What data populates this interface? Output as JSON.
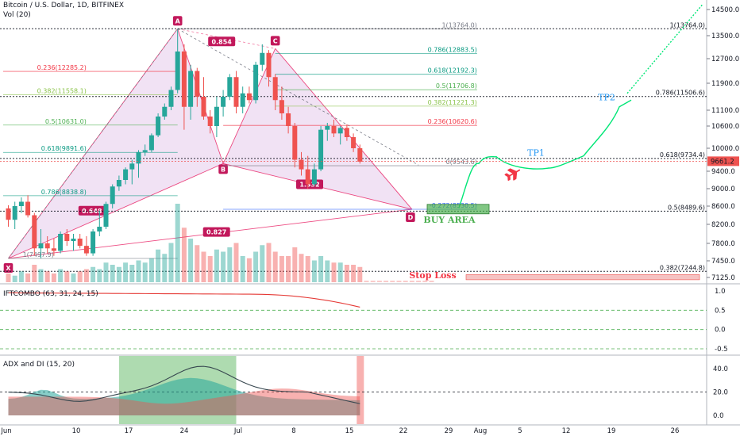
{
  "header": {
    "symbol": "Bitcoin / U.S. Dollar, 1D, BITFINEX",
    "volume_label": "Vol (20)"
  },
  "price_axis": {
    "ticks": [
      "14500.0",
      "13500.0",
      "12700.0",
      "11900.0",
      "11100.0",
      "10600.0",
      "10000.0",
      "9400.0",
      "9000.0",
      "8600.0",
      "8200.0",
      "7800.0",
      "7450.0",
      "7125.0"
    ],
    "last_price": "9661.2"
  },
  "time_axis": {
    "ticks": [
      "Jun",
      "10",
      "17",
      "24",
      "Jul",
      "8",
      "15",
      "22",
      "29",
      "Aug",
      "5",
      "12",
      "19",
      "26"
    ]
  },
  "pattern": {
    "points": {
      "X": "X",
      "A": "A",
      "B": "B",
      "C": "C",
      "D": "D"
    },
    "ratios": {
      "xb": "0.648",
      "ac": "0.854",
      "bd": "1.332",
      "xd": "0.827"
    }
  },
  "fib_levels": [
    {
      "label": "1(13764.0)",
      "color": "#787b86"
    },
    {
      "label": "0.786(12883.5)",
      "color": "#089981"
    },
    {
      "label": "0.618(12192.3)",
      "color": "#089981"
    },
    {
      "label": "0.5(11706.8)",
      "color": "#4caf50"
    },
    {
      "label": "0.382(11221.3)",
      "color": "#8bc34a"
    },
    {
      "label": "0.236(10620.6)",
      "color": "#f23645"
    },
    {
      "label": "0(9543.6)",
      "color": "#787b86"
    },
    {
      "label": "-0.272(8530.5)",
      "color": "#2962ff"
    },
    {
      "label": "0.236(12285.2)",
      "color": "#f23645"
    },
    {
      "label": "0.382(11558.1)",
      "color": "#8bc34a"
    },
    {
      "label": "0.5(10631.0)",
      "color": "#4caf50"
    },
    {
      "label": "0.618(9891.6)",
      "color": "#089981"
    },
    {
      "label": "0.786(8838.8)",
      "color": "#089981"
    },
    {
      "label": "1(7497.9)",
      "color": "#787b86"
    },
    {
      "label": "1(13764.0)",
      "color": "#131722"
    },
    {
      "label": "0.786(11506.6)",
      "color": "#131722"
    },
    {
      "label": "0.618(9734.4)",
      "color": "#131722"
    },
    {
      "label": "0.5(8489.6)",
      "color": "#131722"
    },
    {
      "label": "0.382(7244.8)",
      "color": "#131722"
    }
  ],
  "annotations": {
    "tp1": "TP1",
    "tp2": "TP2",
    "buy_area": "BUY AREA",
    "stop_loss": "Stop Loss"
  },
  "indicators": {
    "iftcombo": {
      "label": "IFTCOMBO (63, 31, 24, 15)",
      "ticks": [
        "1.0",
        "0.5",
        "0.0",
        "-0.5"
      ]
    },
    "adx": {
      "label": "ADX and DI (15, 20)",
      "ticks": [
        "40.0",
        "20.0",
        "0.0"
      ]
    }
  },
  "colors": {
    "up": "#26a69a",
    "down": "#ef5350",
    "pattern_fill": "#e1bee7",
    "pattern_line": "#e91e63",
    "projection": "#00e676"
  },
  "chart_data": {
    "type": "candlestick",
    "title": "Bitcoin / U.S. Dollar, 1D, BITFINEX",
    "x_start": "2019-05-31",
    "interval": "1D",
    "ohlc": [
      [
        8550,
        8620,
        8150,
        8300
      ],
      [
        8300,
        8700,
        8100,
        8600
      ],
      [
        8600,
        8800,
        8450,
        8700
      ],
      [
        8700,
        8850,
        8350,
        8400
      ],
      [
        8400,
        8450,
        7550,
        7700
      ],
      [
        7700,
        8100,
        7500,
        7800
      ],
      [
        7800,
        7950,
        7600,
        7700
      ],
      [
        7700,
        7900,
        7550,
        7650
      ],
      [
        7650,
        8050,
        7600,
        8000
      ],
      [
        8000,
        8100,
        7750,
        7850
      ],
      [
        7850,
        8000,
        7650,
        7900
      ],
      [
        7900,
        8000,
        7700,
        7750
      ],
      [
        7750,
        7950,
        7550,
        7600
      ],
      [
        7600,
        8100,
        7550,
        8050
      ],
      [
        8050,
        8500,
        7950,
        8150
      ],
      [
        8150,
        8700,
        8100,
        8650
      ],
      [
        8650,
        9100,
        8550,
        9050
      ],
      [
        9050,
        9300,
        8950,
        9200
      ],
      [
        9200,
        9500,
        9100,
        9450
      ],
      [
        9450,
        9700,
        9100,
        9600
      ],
      [
        9600,
        9950,
        9250,
        9900
      ],
      [
        9900,
        10100,
        9800,
        9950
      ],
      [
        9950,
        10400,
        9900,
        10350
      ],
      [
        10350,
        11000,
        10300,
        10900
      ],
      [
        10900,
        11300,
        10800,
        11200
      ],
      [
        11200,
        11800,
        11100,
        11700
      ],
      [
        11700,
        13764,
        11600,
        12950
      ],
      [
        12950,
        13200,
        10500,
        11200
      ],
      [
        11200,
        12500,
        10800,
        12300
      ],
      [
        12300,
        12400,
        11200,
        11500
      ],
      [
        11500,
        12100,
        10800,
        10900
      ],
      [
        10900,
        11100,
        10400,
        10600
      ],
      [
        10600,
        11500,
        10300,
        11200
      ],
      [
        11200,
        11700,
        10900,
        11500
      ],
      [
        11500,
        12200,
        11400,
        12100
      ],
      [
        12100,
        12300,
        11000,
        11200
      ],
      [
        11200,
        11800,
        11000,
        11600
      ],
      [
        11600,
        11800,
        11300,
        11400
      ],
      [
        11400,
        12600,
        11300,
        12500
      ],
      [
        12500,
        13200,
        12300,
        12900
      ],
      [
        12900,
        13000,
        11800,
        12100
      ],
      [
        12100,
        12200,
        11100,
        11400
      ],
      [
        11400,
        11800,
        10800,
        11000
      ],
      [
        11000,
        11200,
        10400,
        10600
      ],
      [
        10600,
        10700,
        9500,
        9700
      ],
      [
        9700,
        9900,
        9300,
        9450
      ],
      [
        9450,
        9800,
        9000,
        9100
      ],
      [
        9100,
        9600,
        9050,
        9450
      ],
      [
        9450,
        10600,
        9400,
        10500
      ],
      [
        10500,
        10700,
        10200,
        10600
      ],
      [
        10600,
        10800,
        10300,
        10400
      ],
      [
        10400,
        10600,
        10100,
        10550
      ],
      [
        10550,
        10650,
        10200,
        10300
      ],
      [
        10300,
        10400,
        9900,
        10000
      ],
      [
        10000,
        10100,
        9600,
        9650
      ]
    ],
    "volume": [
      4,
      3,
      5,
      4,
      8,
      6,
      5,
      4,
      6,
      5,
      4,
      5,
      6,
      7,
      6,
      9,
      8,
      7,
      9,
      8,
      10,
      9,
      11,
      15,
      13,
      18,
      36,
      25,
      20,
      17,
      14,
      12,
      15,
      14,
      16,
      18,
      12,
      11,
      14,
      17,
      18,
      14,
      12,
      12,
      16,
      13,
      12,
      10,
      12,
      10,
      9,
      9,
      8,
      8,
      7
    ],
    "projection": [
      [
        28,
        8560
      ],
      [
        33,
        9780
      ],
      [
        36,
        9540
      ],
      [
        41,
        9500
      ],
      [
        43,
        9800
      ],
      [
        47,
        10800
      ],
      [
        49,
        11420
      ],
      [
        56,
        14700
      ]
    ],
    "ylim": [
      7000,
      14700
    ]
  }
}
